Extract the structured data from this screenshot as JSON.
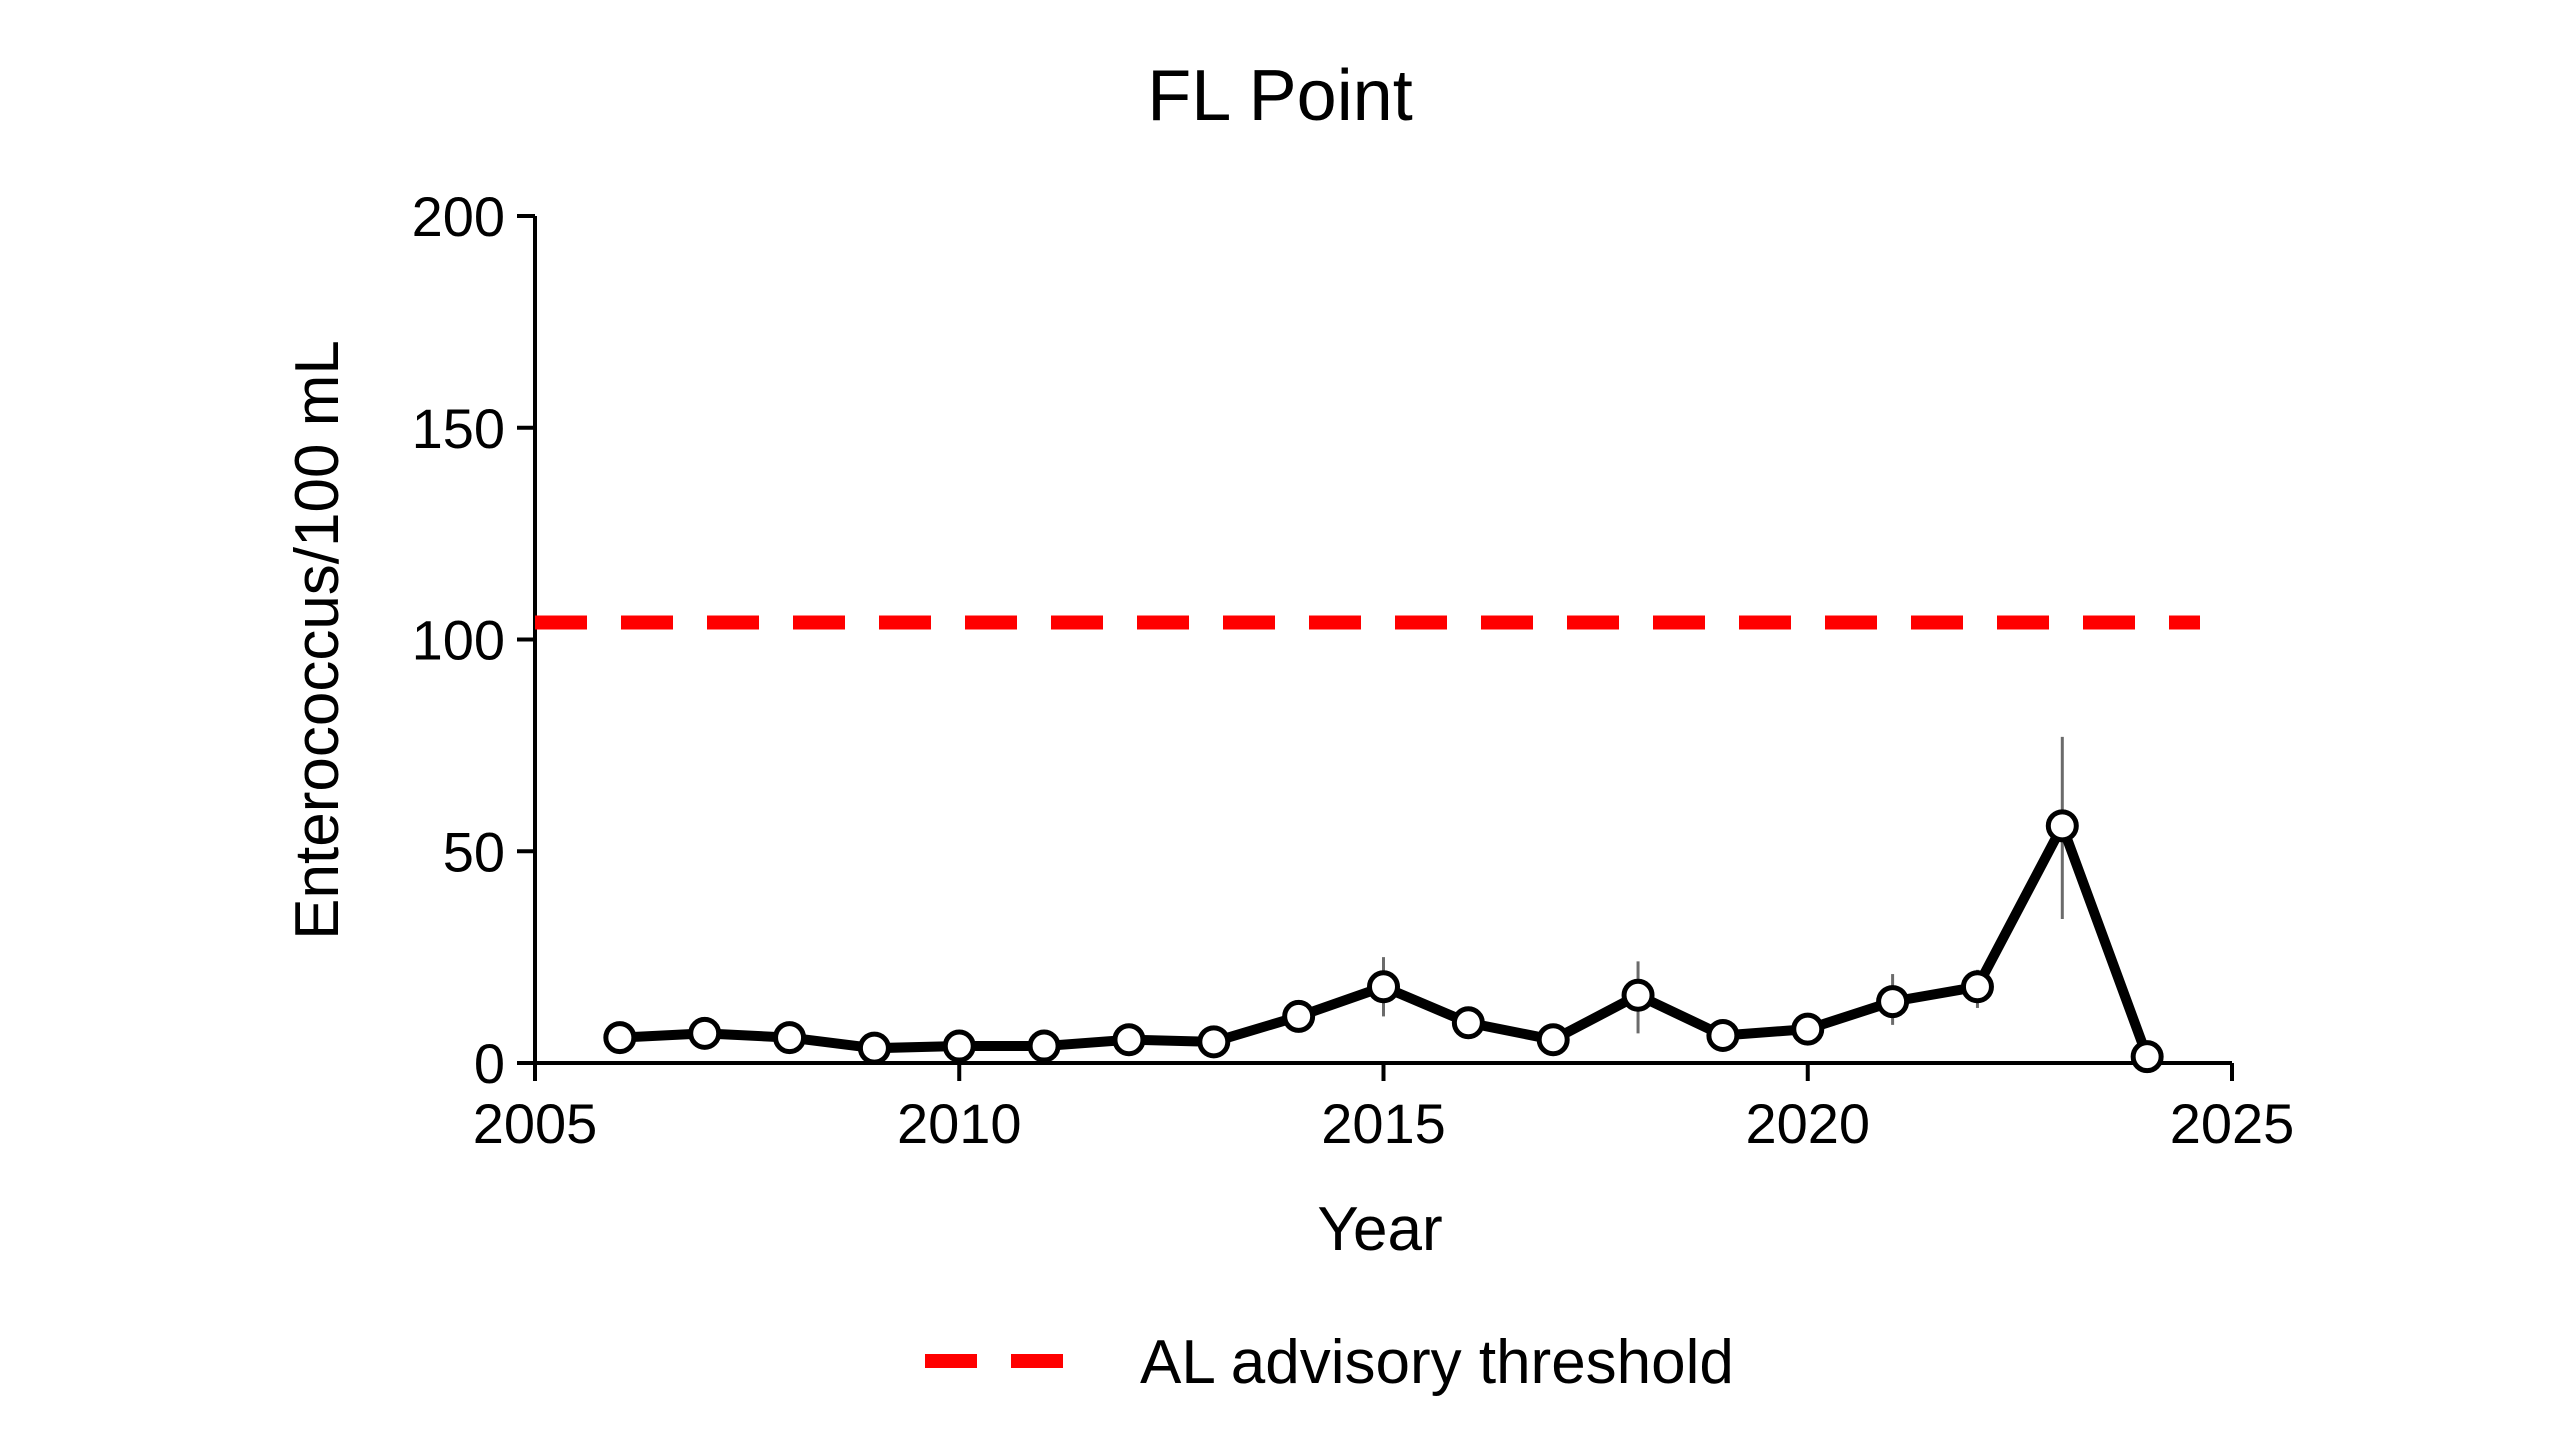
{
  "chart_data": {
    "type": "line",
    "title": "FL Point",
    "xlabel": "Year",
    "ylabel": "Enterococcus/100 mL",
    "xlim": [
      2005,
      2025
    ],
    "ylim": [
      0,
      200
    ],
    "xticks": [
      2005,
      2010,
      2015,
      2020,
      2025
    ],
    "yticks": [
      0,
      50,
      100,
      150,
      200
    ],
    "grid": false,
    "legend_position": "bottom",
    "series": [
      {
        "color": "#000000",
        "marker": "open-circle",
        "points": [
          {
            "x": 2006,
            "y": 6
          },
          {
            "x": 2007,
            "y": 7
          },
          {
            "x": 2008,
            "y": 6
          },
          {
            "x": 2009,
            "y": 3.5
          },
          {
            "x": 2010,
            "y": 4
          },
          {
            "x": 2011,
            "y": 4
          },
          {
            "x": 2012,
            "y": 5.5
          },
          {
            "x": 2013,
            "y": 5
          },
          {
            "x": 2014,
            "y": 11
          },
          {
            "x": 2015,
            "y": 18,
            "err_low": 11,
            "err_high": 25
          },
          {
            "x": 2016,
            "y": 9.5
          },
          {
            "x": 2017,
            "y": 5.5
          },
          {
            "x": 2018,
            "y": 16,
            "err_low": 7,
            "err_high": 24
          },
          {
            "x": 2019,
            "y": 6.5
          },
          {
            "x": 2020,
            "y": 8
          },
          {
            "x": 2021,
            "y": 14.5,
            "err_low": 9,
            "err_high": 21
          },
          {
            "x": 2022,
            "y": 18,
            "err_low": 13,
            "err_high": 22
          },
          {
            "x": 2023,
            "y": 56,
            "err_low": 34,
            "err_high": 77
          },
          {
            "x": 2024,
            "y": 1.5
          }
        ]
      }
    ],
    "threshold": {
      "name": "AL advisory threshold",
      "value": 104,
      "color": "#ff0000",
      "style": "dashed"
    }
  }
}
